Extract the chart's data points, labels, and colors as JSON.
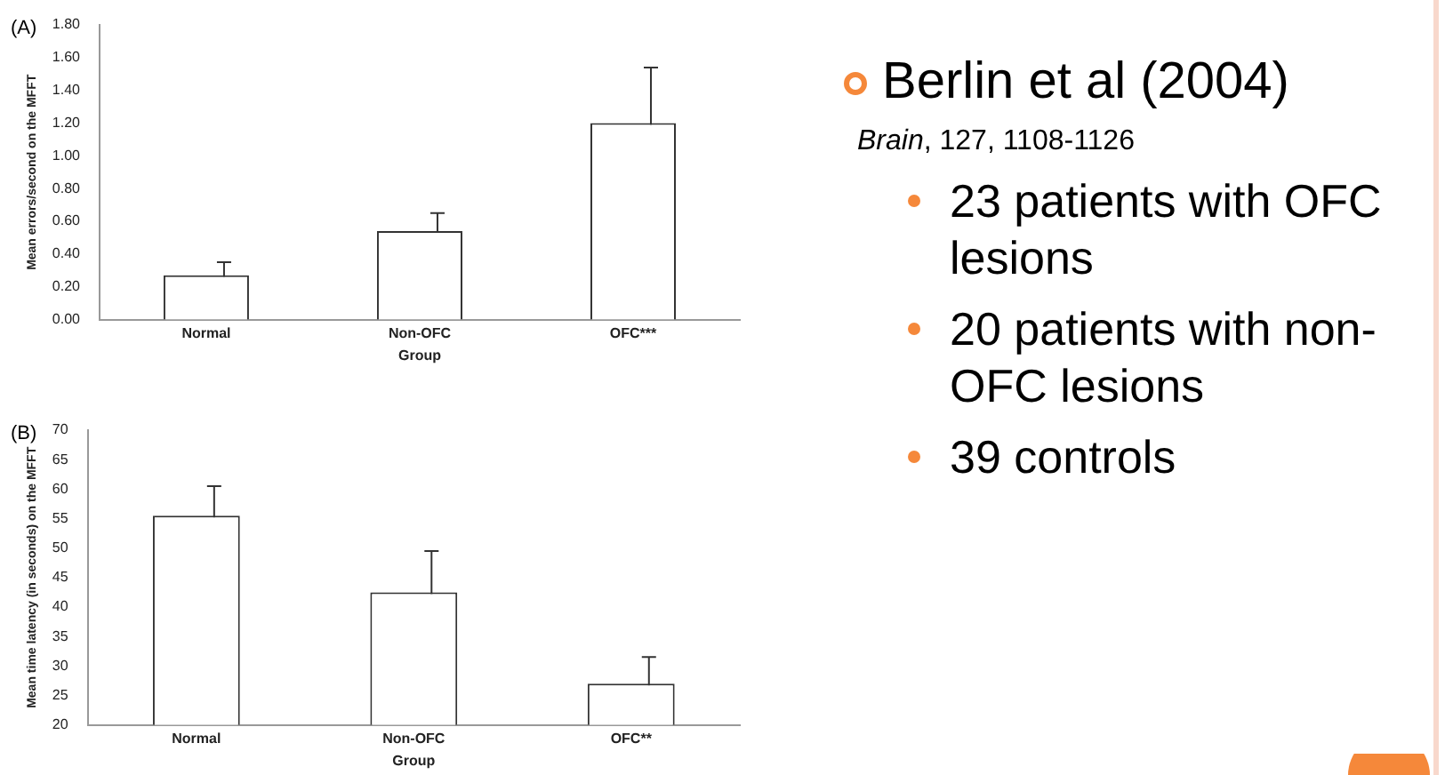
{
  "chart_data": [
    {
      "type": "bar",
      "title": "(A)",
      "xlabel": "Group",
      "ylabel": "Mean errors/second on the MFFT",
      "categories": [
        "Normal",
        "Non-OFC",
        "OFC***"
      ],
      "values": [
        0.27,
        0.54,
        1.2
      ],
      "errors": [
        0.08,
        0.11,
        0.34
      ],
      "color": "#ffffff",
      "ylim": [
        0,
        1.8
      ],
      "yticks": [
        {
          "value": 0,
          "label": "0.00"
        },
        {
          "value": 0.2,
          "label": "0.20"
        },
        {
          "value": 0.4,
          "label": "0.40"
        },
        {
          "value": 0.6,
          "label": "0.60"
        },
        {
          "value": 0.8,
          "label": "0.80"
        },
        {
          "value": 1,
          "label": "1.00"
        },
        {
          "value": 1.2,
          "label": "1.20"
        },
        {
          "value": 1.4,
          "label": "1.40"
        },
        {
          "value": 1.6,
          "label": "1.60"
        },
        {
          "value": 1.8,
          "label": "1.80"
        }
      ]
    },
    {
      "type": "bar",
      "title": "(B)",
      "xlabel": "Group",
      "ylabel": "Mean time latency (in seconds) on the MFFT",
      "categories": [
        "Normal",
        "Non-OFC",
        "OFC**"
      ],
      "values": [
        55.5,
        42.5,
        27
      ],
      "errors": [
        5,
        7,
        4.5
      ],
      "color": "#ffffff",
      "ylim": [
        20,
        70
      ],
      "yticks": [
        20,
        25,
        30,
        35,
        40,
        45,
        50,
        55,
        60,
        65,
        70
      ]
    },
    {
      "type": "other",
      "title": "Berlin et al (2004)",
      "subtitle": "Brain, 127, 1108-1126",
      "annotations": [
        "23 patients with OFC lesions",
        "20 patients with non-OFC lesions",
        "39 controls"
      ]
    }
  ]
}
